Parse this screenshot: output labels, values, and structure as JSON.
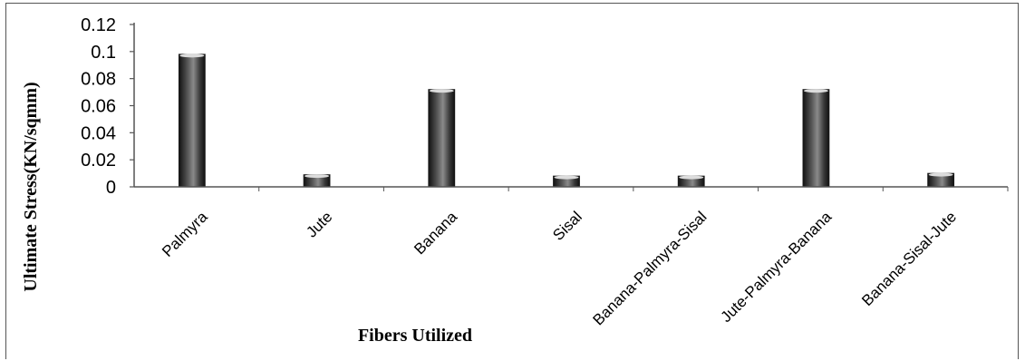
{
  "chart_data": {
    "type": "bar",
    "title": "",
    "xlabel": "Fibers Utilized",
    "ylabel": "Ultimate Stress(KN/sqmm)",
    "categories": [
      "Palmyra",
      "Jute",
      "Banana",
      "Sisal",
      "Banana-Palmyra-Sisal",
      "Jute-Palmyra-Banana",
      "Banana-Sisal-Jute"
    ],
    "values": [
      0.098,
      0.009,
      0.072,
      0.008,
      0.008,
      0.072,
      0.01
    ],
    "ylim": [
      0,
      0.12
    ],
    "yticks": [
      0,
      0.02,
      0.04,
      0.06,
      0.08,
      0.1,
      0.12
    ],
    "ytick_labels": [
      "0",
      "0.02",
      "0.04",
      "0.06",
      "0.08",
      "0.1",
      "0.12"
    ],
    "grid": false,
    "legend": "none",
    "bar_color": "#2b2b2b"
  }
}
